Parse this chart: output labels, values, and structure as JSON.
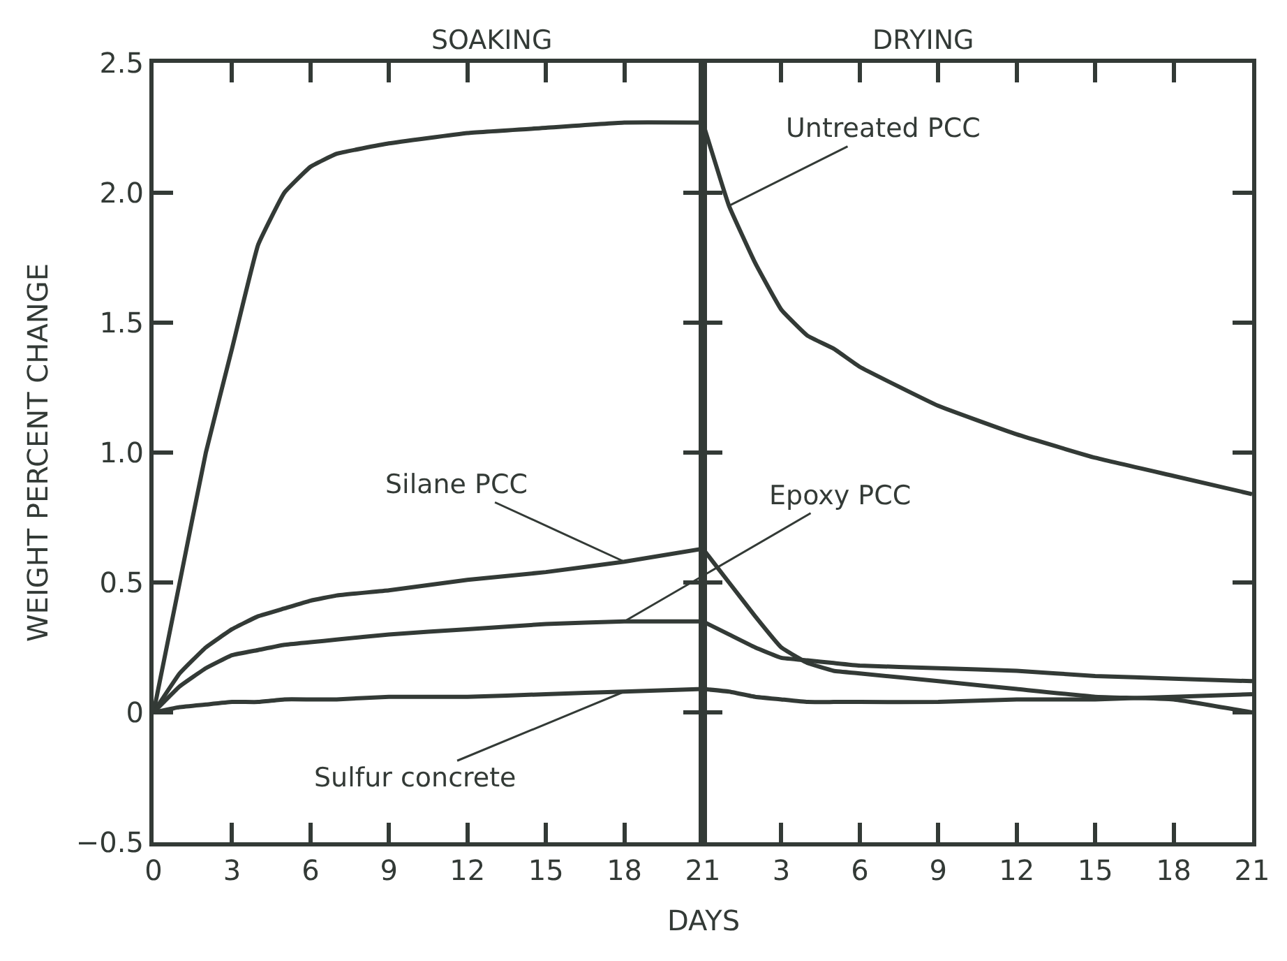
{
  "chart_data": [
    {
      "type": "line",
      "title": "SOAKING",
      "xlabel": "DAYS",
      "ylabel": "WEIGHT PERCENT CHANGE",
      "x": [
        0,
        1,
        2,
        3,
        4,
        5,
        6,
        7,
        9,
        12,
        15,
        18,
        21
      ],
      "series": [
        {
          "color": "#333a36",
          "values": [
            0,
            0.5,
            1.0,
            1.4,
            1.8,
            2.0,
            2.1,
            2.15,
            2.19,
            2.23,
            2.25,
            2.27,
            2.27
          ]
        },
        {
          "name": "Silane PCC",
          "color": "#333a36",
          "values": [
            0,
            0.15,
            0.25,
            0.32,
            0.37,
            0.4,
            0.43,
            0.45,
            0.47,
            0.51,
            0.54,
            0.58,
            0.63
          ]
        },
        {
          "name": "Epoxy PCC",
          "color": "#333a36",
          "values": [
            0,
            0.1,
            0.17,
            0.22,
            0.24,
            0.26,
            0.27,
            0.28,
            0.3,
            0.32,
            0.34,
            0.35,
            0.35
          ]
        },
        {
          "name": "Sulfur concrete",
          "color": "#333a36",
          "values": [
            0,
            0.02,
            0.03,
            0.04,
            0.04,
            0.05,
            0.05,
            0.05,
            0.06,
            0.06,
            0.07,
            0.08,
            0.09
          ]
        }
      ],
      "xlim": [
        0,
        21
      ],
      "xticks": [
        0,
        3,
        6,
        9,
        12,
        15,
        18,
        21
      ],
      "ylim": [
        -0.5,
        2.5
      ],
      "yticks": [
        {
          "value": -0.5,
          "label": "−0.5"
        },
        0,
        0.5,
        {
          "value": 1,
          "label": "1.0"
        },
        1.5,
        {
          "value": 2,
          "label": "2.0"
        },
        2.5
      ],
      "marker": "none",
      "line_style": "solid"
    },
    {
      "type": "line",
      "title": "DRYING",
      "x": [
        0,
        1,
        2,
        3,
        4,
        5,
        6,
        9,
        12,
        15,
        18,
        21
      ],
      "series": [
        {
          "name": "Untreated PCC",
          "color": "#333a36",
          "values": [
            2.27,
            1.95,
            1.73,
            1.55,
            1.45,
            1.4,
            1.33,
            1.18,
            1.07,
            0.98,
            0.91,
            0.84
          ]
        },
        {
          "color": "#333a36",
          "values": [
            0.63,
            0.5,
            0.37,
            0.25,
            0.19,
            0.16,
            0.15,
            0.12,
            0.09,
            0.06,
            0.05,
            0.0
          ]
        },
        {
          "color": "#333a36",
          "values": [
            0.35,
            0.3,
            0.25,
            0.21,
            0.2,
            0.19,
            0.18,
            0.17,
            0.16,
            0.14,
            0.13,
            0.12
          ]
        },
        {
          "color": "#333a36",
          "values": [
            0.09,
            0.08,
            0.06,
            0.05,
            0.04,
            0.04,
            0.04,
            0.04,
            0.05,
            0.05,
            0.06,
            0.07
          ]
        }
      ],
      "xlim": [
        0,
        21
      ],
      "xticks": [
        3,
        6,
        9,
        12,
        15,
        18,
        21
      ],
      "ylim": [
        -0.5,
        2.5
      ],
      "yticks": [
        -0.5,
        0,
        0.5,
        1,
        1.5,
        2,
        2.5
      ],
      "tick_labels": "x",
      "marker": "none",
      "line_style": "solid"
    }
  ]
}
